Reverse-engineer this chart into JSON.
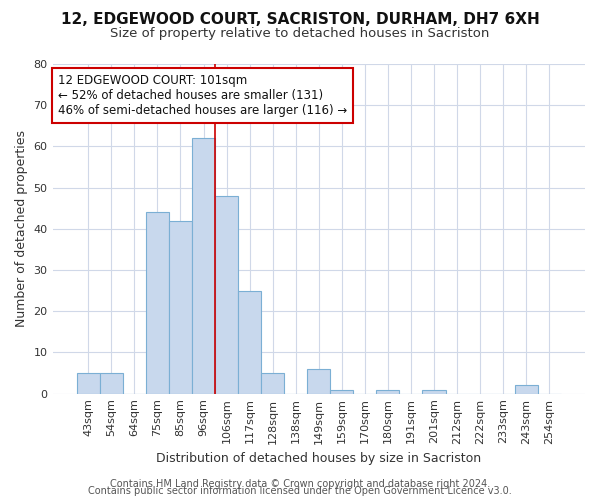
{
  "title": "12, EDGEWOOD COURT, SACRISTON, DURHAM, DH7 6XH",
  "subtitle": "Size of property relative to detached houses in Sacriston",
  "xlabel": "Distribution of detached houses by size in Sacriston",
  "ylabel": "Number of detached properties",
  "bar_labels": [
    "43sqm",
    "54sqm",
    "64sqm",
    "75sqm",
    "85sqm",
    "96sqm",
    "106sqm",
    "117sqm",
    "128sqm",
    "138sqm",
    "149sqm",
    "159sqm",
    "170sqm",
    "180sqm",
    "191sqm",
    "201sqm",
    "212sqm",
    "222sqm",
    "233sqm",
    "243sqm",
    "254sqm"
  ],
  "bar_values": [
    5,
    5,
    0,
    44,
    42,
    62,
    48,
    25,
    5,
    0,
    6,
    1,
    0,
    1,
    0,
    1,
    0,
    0,
    0,
    2,
    0
  ],
  "bar_color": "#c8d8ed",
  "bar_edge_color": "#7bafd4",
  "red_line_bin": 5,
  "annotation_line1": "12 EDGEWOOD COURT: 101sqm",
  "annotation_line2": "← 52% of detached houses are smaller (131)",
  "annotation_line3": "46% of semi-detached houses are larger (116) →",
  "annotation_box_color": "white",
  "annotation_box_edge_color": "#cc0000",
  "ylim": [
    0,
    80
  ],
  "yticks": [
    0,
    10,
    20,
    30,
    40,
    50,
    60,
    70,
    80
  ],
  "footer_line1": "Contains HM Land Registry data © Crown copyright and database right 2024.",
  "footer_line2": "Contains public sector information licensed under the Open Government Licence v3.0.",
  "bg_color": "#ffffff",
  "grid_color": "#d0d8e8",
  "title_fontsize": 11,
  "subtitle_fontsize": 9.5,
  "axis_label_fontsize": 9,
  "tick_fontsize": 8,
  "annotation_fontsize": 8.5,
  "footer_fontsize": 7
}
